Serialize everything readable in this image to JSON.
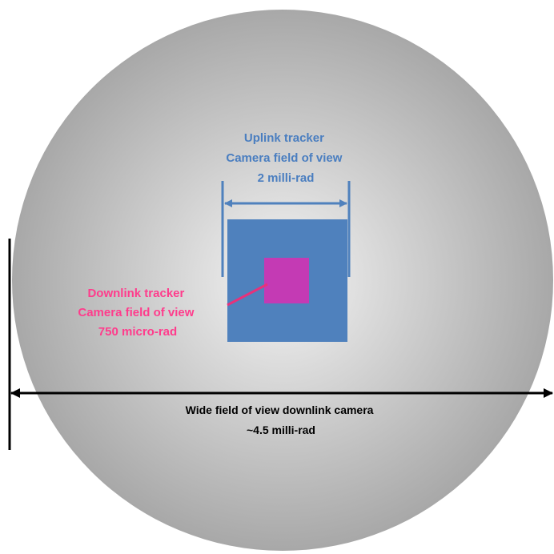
{
  "colors": {
    "background": "#ffffff",
    "circle_center": "#f4f4f4",
    "circle_edge": "#a8a8a8",
    "uplink_accent": "#4f81bd",
    "uplink_text": "#4a7ec0",
    "downlink_fill": "#c43ab4",
    "downlink_text": "#ff3c8c",
    "downlink_line": "#e8317a",
    "wide_arrow": "#000000"
  },
  "uplink": {
    "line1": "Uplink tracker",
    "line2": "Camera field of view",
    "line3": "2 milli-rad"
  },
  "downlink": {
    "line1": "Downlink tracker",
    "line2": "Camera field of view",
    "line3": "750 micro-rad"
  },
  "wide": {
    "line1": "Wide field of view downlink camera",
    "line2": "~4.5 milli-rad"
  }
}
